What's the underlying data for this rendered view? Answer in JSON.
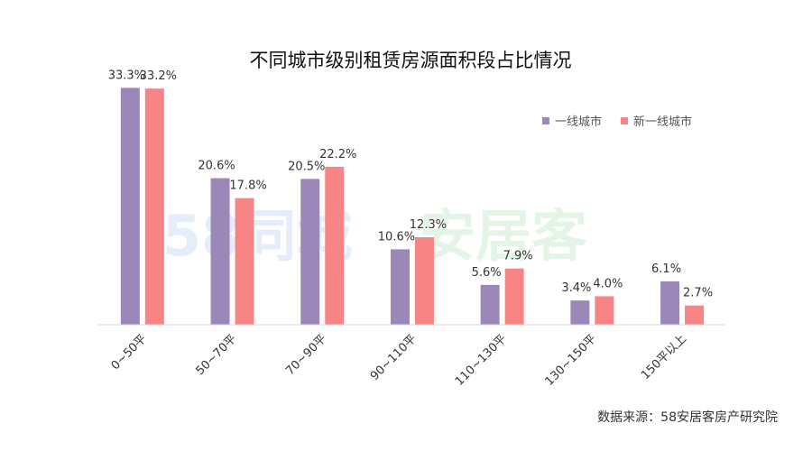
{
  "chart_data": {
    "type": "bar",
    "title": "不同城市级别租赁房源面积段占比情况",
    "categories": [
      "0~50平",
      "50~70平",
      "70~90平",
      "90~110平",
      "110~130平",
      "130~150平",
      "150平以上"
    ],
    "series": [
      {
        "name": "一线城市",
        "color": "#9b87b8",
        "values": [
          33.3,
          20.6,
          20.5,
          10.6,
          5.6,
          3.4,
          6.1
        ],
        "labels": [
          "33.3%",
          "20.6%",
          "20.5%",
          "10.6%",
          "5.6%",
          "3.4%",
          "6.1%"
        ]
      },
      {
        "name": "新一线城市",
        "color": "#f88585",
        "values": [
          33.2,
          17.8,
          22.2,
          12.3,
          7.9,
          4.0,
          2.7
        ],
        "labels": [
          "33.2%",
          "17.8%",
          "22.2%",
          "12.3%",
          "7.9%",
          "4.0%",
          "2.7%"
        ]
      }
    ],
    "ylim": [
      0,
      35
    ],
    "grid": false,
    "legend_position": "top-right"
  },
  "watermark": {
    "left": "58同城",
    "right": "安居客"
  },
  "source": "数据来源：58安居客房产研究院"
}
